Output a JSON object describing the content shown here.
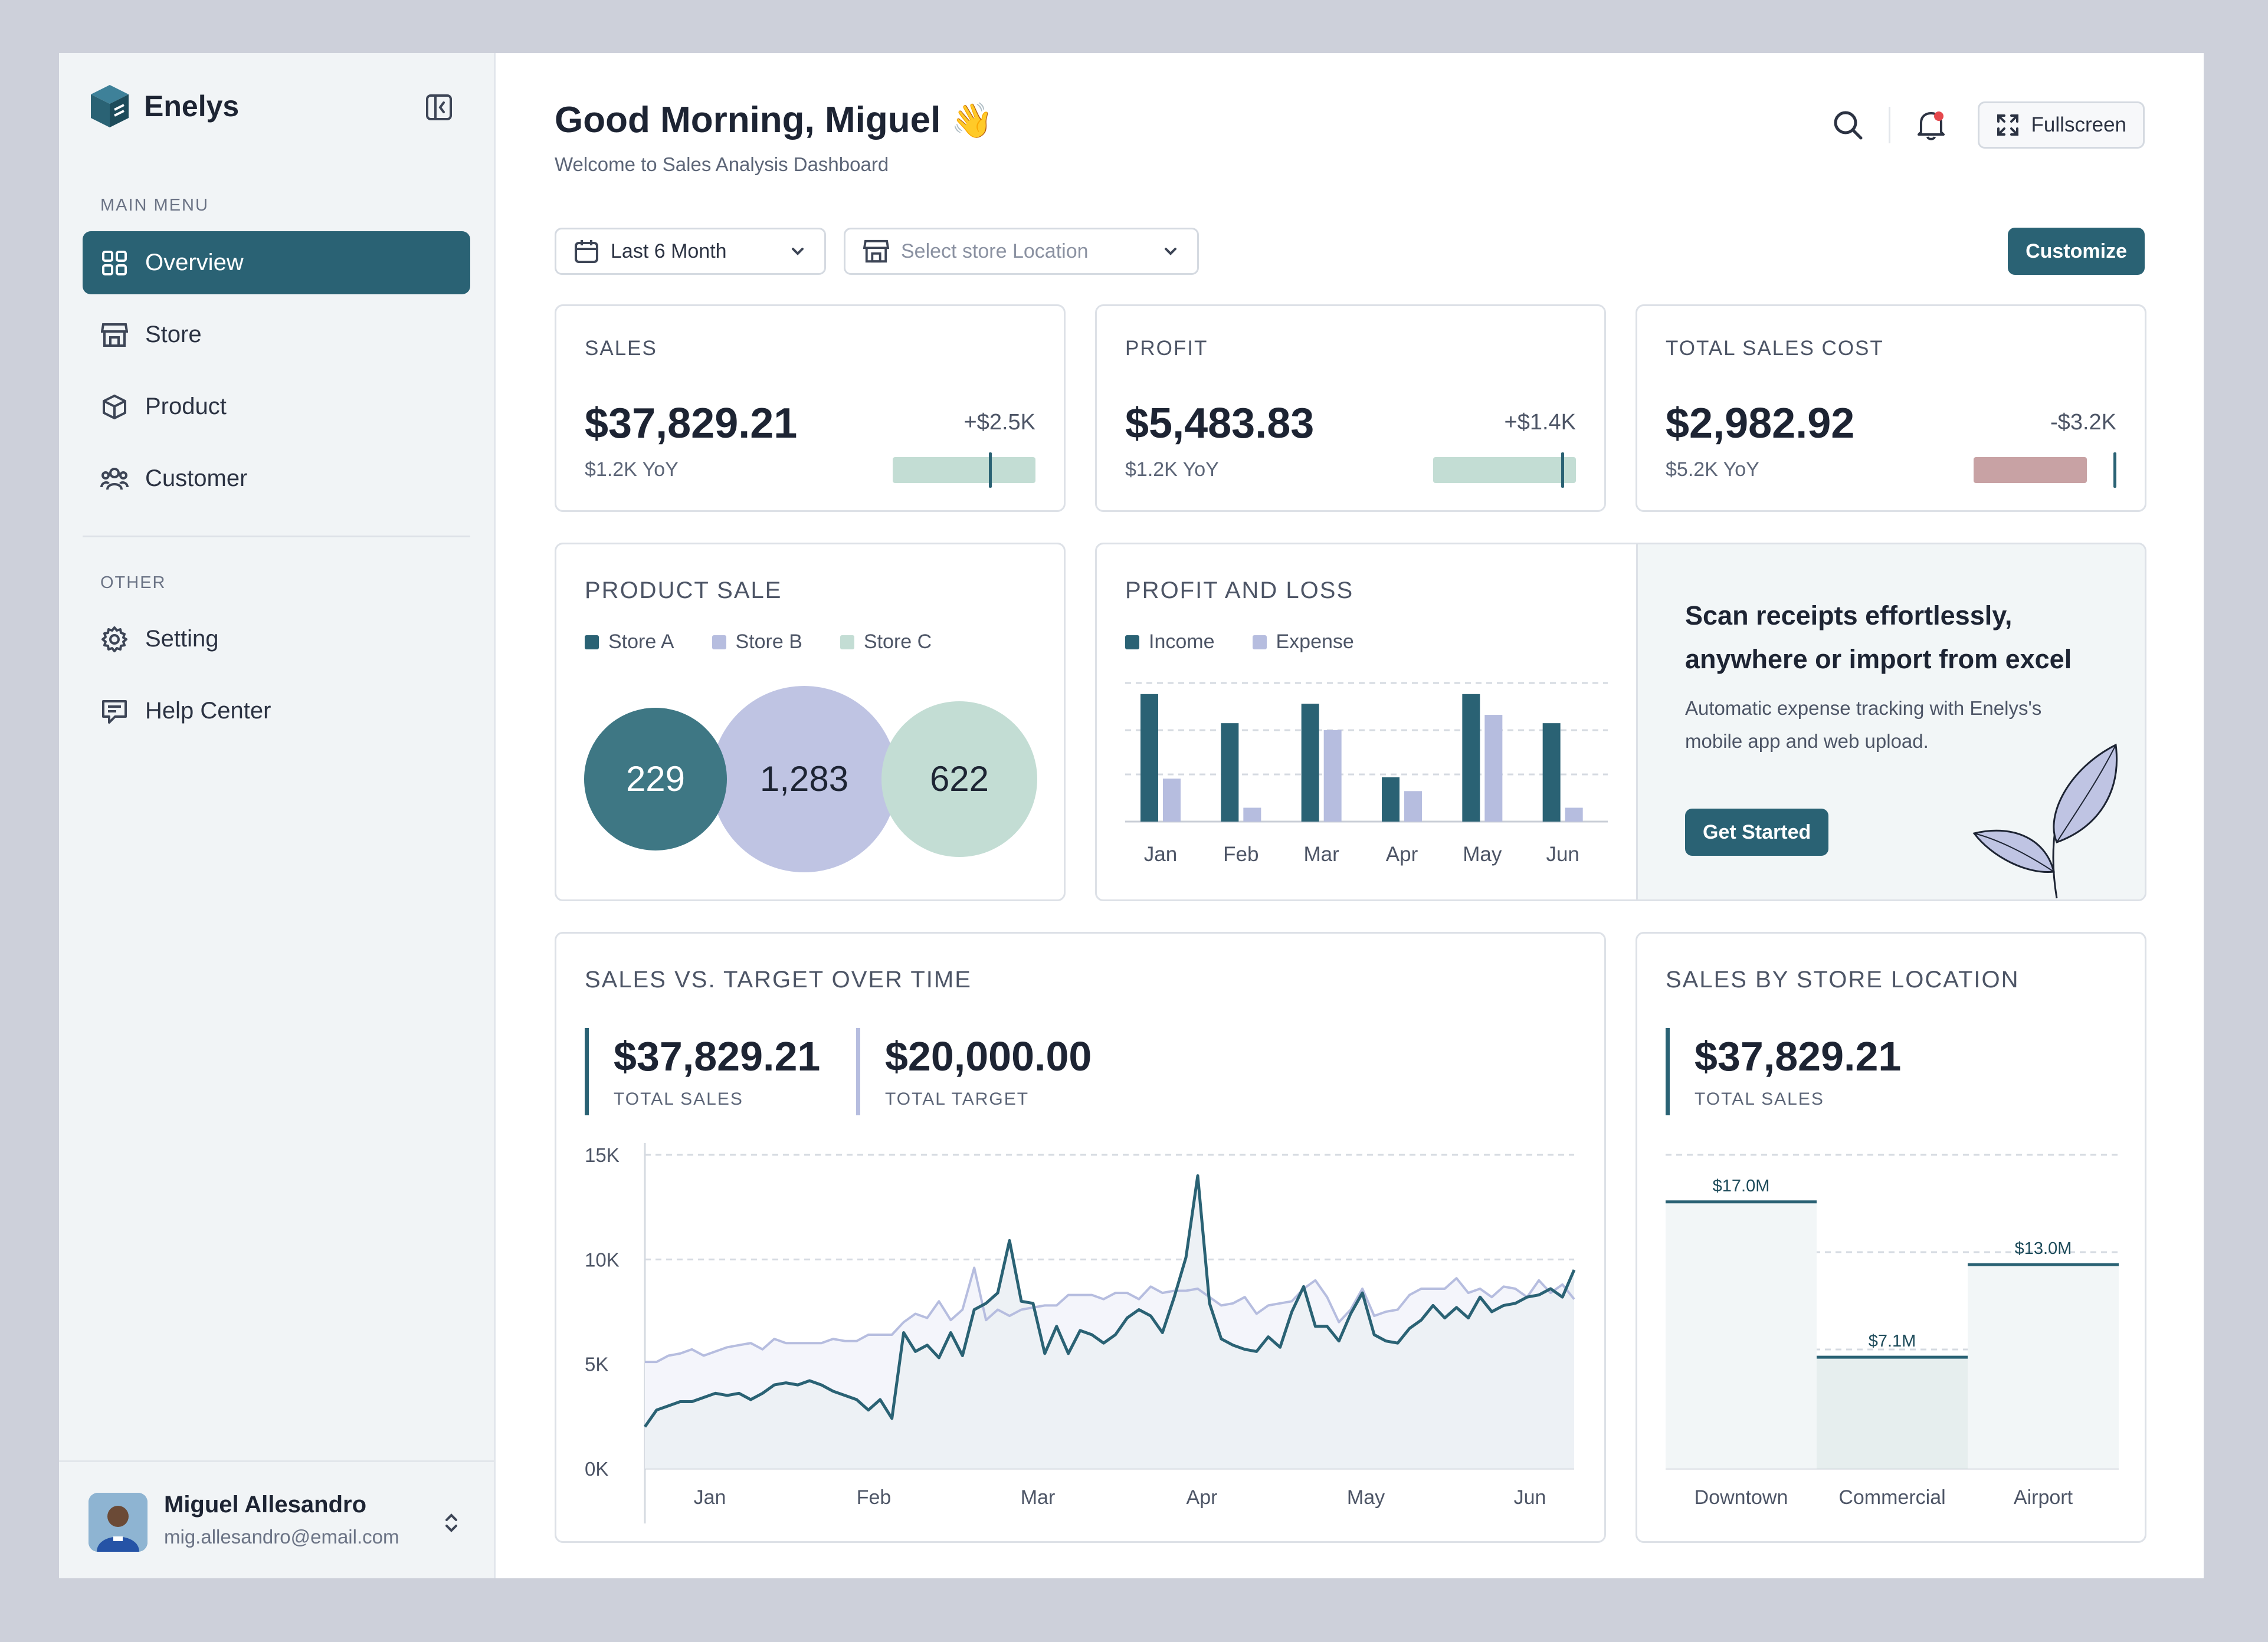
{
  "brand": {
    "name": "Enelys"
  },
  "sidebar": {
    "main_menu_label": "MAIN MENU",
    "items": [
      {
        "label": "Overview",
        "icon": "grid-icon",
        "active": true
      },
      {
        "label": "Store",
        "icon": "store-icon"
      },
      {
        "label": "Product",
        "icon": "box-icon"
      },
      {
        "label": "Customer",
        "icon": "users-icon"
      }
    ],
    "other_label": "OTHER",
    "other_items": [
      {
        "label": "Setting",
        "icon": "gear-icon"
      },
      {
        "label": "Help Center",
        "icon": "help-chat-icon"
      }
    ],
    "user": {
      "name": "Miguel Allesandro",
      "email": "mig.allesandro@email.com"
    }
  },
  "header": {
    "greeting": "Good Morning, Miguel",
    "emoji": "👋",
    "subtitle": "Welcome to Sales Analysis Dashboard",
    "fullscreen_label": "Fullscreen"
  },
  "filters": {
    "period": "Last 6 Month",
    "location_placeholder": "Select store Location",
    "customize_label": "Customize"
  },
  "kpis": [
    {
      "title": "SALES",
      "value": "$37,829.21",
      "delta": "+$2.5K",
      "yoy": "$1.2K YoY",
      "trend": "positive",
      "marker_fraction": 0.68
    },
    {
      "title": "PROFIT",
      "value": "$5,483.83",
      "delta": "+$1.4K",
      "yoy": "$1.2K YoY",
      "trend": "positive",
      "marker_fraction": 0.9
    },
    {
      "title": "TOTAL SALES COST",
      "value": "$2,982.92",
      "delta": "-$3.2K",
      "yoy": "$5.2K YoY",
      "trend": "negative",
      "marker_fraction": 1.0
    }
  ],
  "colors": {
    "accent": "#2A6274",
    "lavender": "#B6BDDF",
    "mint": "#C3DDD4",
    "rose": "#C8A2A4"
  },
  "product_sale": {
    "title": "PRODUCT SALE",
    "legend": [
      "Store A",
      "Store B",
      "Store C"
    ],
    "values": [
      "229",
      "1,283",
      "622"
    ]
  },
  "profit_loss": {
    "title": "PROFIT AND LOSS",
    "legend": [
      "Income",
      "Expense"
    ],
    "chart_data": {
      "type": "bar",
      "categories": [
        "Jan",
        "Feb",
        "Mar",
        "Apr",
        "May",
        "Jun"
      ],
      "series": [
        {
          "name": "Income",
          "values": [
            92,
            71,
            85,
            32,
            92,
            71
          ]
        },
        {
          "name": "Expense",
          "values": [
            31,
            10,
            66,
            22,
            77,
            10
          ]
        }
      ],
      "ylim": [
        0,
        100
      ]
    }
  },
  "promo": {
    "title": "Scan receipts effortlessly, anywhere or import from excel",
    "text": "Automatic expense tracking with Enelys's mobile app and web upload.",
    "button": "Get Started"
  },
  "sales_vs_target": {
    "title": "SALES VS. TARGET OVER TIME",
    "total_sales": "$37,829.21",
    "total_sales_label": "TOTAL SALES",
    "total_target": "$20,000.00",
    "total_target_label": "TOTAL TARGET",
    "chart_data": {
      "type": "area",
      "y_ticks": [
        "15K",
        "10K",
        "5K",
        "0K"
      ],
      "ylim": [
        0,
        15000
      ],
      "x_ticks": [
        "Jan",
        "Feb",
        "Mar",
        "Apr",
        "May",
        "Jun"
      ],
      "series": [
        {
          "name": "Sales",
          "values": [
            2000,
            2800,
            3000,
            3200,
            3200,
            3400,
            3600,
            3500,
            3600,
            3300,
            3600,
            4000,
            4100,
            4000,
            4200,
            4000,
            3700,
            3500,
            3300,
            2800,
            3300,
            2400,
            6500,
            5600,
            5900,
            5300,
            6500,
            5400,
            7600,
            7900,
            8400,
            10900,
            8000,
            7900,
            5500,
            6800,
            5500,
            6600,
            6400,
            6000,
            6400,
            7200,
            7600,
            7300,
            6500,
            8200,
            10100,
            14000,
            7900,
            6200,
            5900,
            5700,
            5600,
            6300,
            5800,
            7500,
            8700,
            6800,
            6800,
            6100,
            7400,
            8400,
            6400,
            6100,
            6000,
            6700,
            7100,
            7800,
            7200,
            7700,
            7200,
            8200,
            7500,
            7800,
            7900,
            8200,
            8300,
            8600,
            8200,
            9500
          ]
        },
        {
          "name": "Target",
          "values": [
            5100,
            5100,
            5400,
            5500,
            5700,
            5400,
            5600,
            5800,
            5900,
            6000,
            5700,
            6200,
            6000,
            6000,
            6000,
            6000,
            6200,
            6100,
            6100,
            6400,
            6400,
            6400,
            7000,
            7400,
            7200,
            8000,
            7100,
            7600,
            9600,
            7100,
            7600,
            7300,
            7600,
            7700,
            7800,
            7800,
            8300,
            8300,
            8300,
            8100,
            8400,
            8400,
            8100,
            8700,
            8400,
            8500,
            8500,
            8600,
            8200,
            7800,
            7900,
            8200,
            7400,
            7800,
            7900,
            8000,
            8600,
            9000,
            8200,
            7000,
            7600,
            8600,
            7300,
            7500,
            7600,
            8300,
            8600,
            8600,
            8600,
            9100,
            8400,
            8600,
            8200,
            8700,
            8600,
            8200,
            9000,
            8400,
            8800,
            8100
          ]
        }
      ]
    }
  },
  "sales_by_location": {
    "title": "SALES BY STORE LOCATION",
    "total_sales": "$37,829.21",
    "total_sales_label": "TOTAL SALES",
    "chart_data": {
      "type": "bar",
      "categories": [
        "Downtown",
        "Commercial",
        "Airport"
      ],
      "values": [
        17.0,
        7.1,
        13.0
      ],
      "labels": [
        "$17.0M",
        "$7.1M",
        "$13.0M"
      ],
      "ylim": [
        0,
        20
      ]
    }
  }
}
